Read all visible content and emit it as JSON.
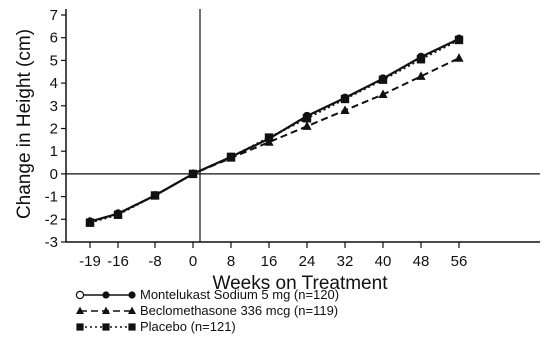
{
  "chart_data": {
    "type": "line",
    "xlabel": "Weeks on Treatment",
    "ylabel": "Change in Height (cm)",
    "xticks": [
      -19,
      -16,
      -8,
      0,
      8,
      16,
      24,
      32,
      40,
      48,
      56
    ],
    "yticks": [
      -3,
      -2,
      -1,
      0,
      1,
      2,
      3,
      4,
      5,
      6,
      7
    ],
    "xlim": [
      -19,
      56
    ],
    "ylim": [
      -3,
      7
    ],
    "grid": false,
    "legend_position": "bottom-left",
    "series": [
      {
        "name": "Montelukast Sodium 5 mg (n=120)",
        "marker": "circle",
        "line_style": "solid",
        "x": [
          -19,
          -16,
          -8,
          0,
          8,
          16,
          24,
          32,
          40,
          48,
          56
        ],
        "y": [
          -2.1,
          -1.75,
          -0.95,
          0,
          0.75,
          1.55,
          2.55,
          3.35,
          4.2,
          5.15,
          5.95
        ]
      },
      {
        "name": "Beclomethasone 336 mcg (n=119)",
        "marker": "triangle",
        "line_style": "dashed",
        "x": [
          -19,
          -16,
          -8,
          0,
          8,
          16,
          24,
          32,
          40,
          48,
          56
        ],
        "y": [
          -2.1,
          -1.75,
          -0.95,
          0,
          0.7,
          1.4,
          2.1,
          2.8,
          3.5,
          4.3,
          5.1
        ]
      },
      {
        "name": "Placebo (n=121)",
        "marker": "square",
        "line_style": "dotted",
        "x": [
          -19,
          -16,
          -8,
          0,
          8,
          16,
          24,
          32,
          40,
          48,
          56
        ],
        "y": [
          -2.15,
          -1.8,
          -0.95,
          0,
          0.75,
          1.6,
          2.45,
          3.3,
          4.15,
          5.05,
          5.9
        ]
      }
    ]
  }
}
